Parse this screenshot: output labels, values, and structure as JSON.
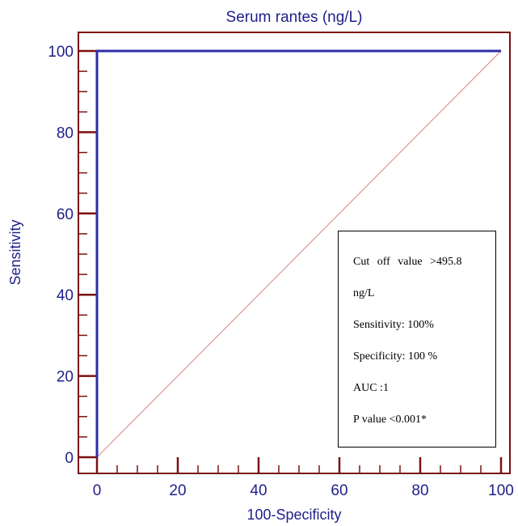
{
  "chart_data": {
    "type": "line",
    "title": "Serum rantes (ng/L)",
    "xlabel": "100-Specificity",
    "ylabel": "Sensitivity",
    "xlim": [
      0,
      100
    ],
    "ylim": [
      0,
      100
    ],
    "xticks": [
      0,
      20,
      40,
      60,
      80,
      100
    ],
    "yticks": [
      0,
      20,
      40,
      60,
      80,
      100
    ],
    "grid": false,
    "series": [
      {
        "role": "roc-curve",
        "color": "#2e2ea8",
        "x": [
          0,
          0,
          100
        ],
        "y": [
          0,
          100,
          100
        ]
      },
      {
        "role": "reference-diagonal",
        "color": "#d98080",
        "x": [
          0,
          100
        ],
        "y": [
          0,
          100
        ]
      }
    ],
    "annotation_lines": [
      "Cut off value >495.8",
      "ng/L",
      "Sensitivity: 100%",
      "Specificity: 100 %",
      "AUC :1",
      "P value <0.001*"
    ],
    "colors": {
      "axis": "#7a1010",
      "text": "#1f1f8a"
    }
  }
}
